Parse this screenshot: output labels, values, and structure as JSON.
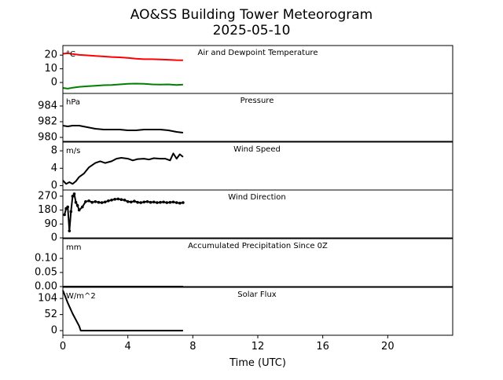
{
  "chart_data": {
    "type": "line",
    "title": "AO&SS Building Tower Meteorogram",
    "subtitle": "2025-05-10",
    "xlabel": "Time (UTC)",
    "xlim": [
      0,
      24
    ],
    "xticks": [
      0,
      4,
      8,
      12,
      16,
      20
    ],
    "panels": [
      {
        "title": "Air and Dewpoint Temperature",
        "unit": "°C",
        "ylim": [
          -8,
          27
        ],
        "yticks": [
          0,
          10,
          20
        ],
        "series": [
          {
            "color": "#ff0000",
            "x": [
              0,
              0.3,
              0.6,
              1,
              1.5,
              2,
              2.5,
              3,
              3.5,
              4,
              4.5,
              5,
              5.5,
              6,
              6.5,
              7,
              7.4
            ],
            "y": [
              21,
              21.4,
              20.8,
              20.2,
              19.8,
              19.4,
              19,
              18.6,
              18.4,
              18,
              17.4,
              17,
              17,
              16.8,
              16.6,
              16.3,
              16.2
            ]
          },
          {
            "color": "#008000",
            "x": [
              0,
              0.3,
              0.6,
              1,
              1.5,
              2,
              2.5,
              3,
              3.5,
              4,
              4.5,
              5,
              5.5,
              6,
              6.5,
              7,
              7.4
            ],
            "y": [
              -4,
              -4.5,
              -3.8,
              -3.2,
              -2.8,
              -2.4,
              -2,
              -1.8,
              -1.4,
              -1,
              -0.8,
              -1,
              -1.4,
              -1.6,
              -1.4,
              -1.8,
              -1.6
            ]
          }
        ]
      },
      {
        "title": "Pressure",
        "unit": "hPa",
        "ylim": [
          979.5,
          985.6
        ],
        "yticks": [
          980,
          982,
          984
        ],
        "series": [
          {
            "color": "#000000",
            "x": [
              0,
              0.3,
              0.6,
              1,
              1.5,
              2,
              2.5,
              3,
              3.5,
              4,
              4.5,
              5,
              5.5,
              6,
              6.5,
              7,
              7.4
            ],
            "y": [
              981.5,
              981.4,
              981.5,
              981.5,
              981.3,
              981.1,
              981,
              981,
              981,
              980.9,
              980.9,
              981,
              981,
              981,
              980.9,
              980.7,
              980.6
            ]
          }
        ]
      },
      {
        "title": "Wind Speed",
        "unit": "m/s",
        "ylim": [
          -1,
          10
        ],
        "yticks": [
          0,
          4,
          8
        ],
        "series": [
          {
            "color": "#000000",
            "x": [
              0,
              0.2,
              0.4,
              0.6,
              0.8,
              1,
              1.3,
              1.6,
              2,
              2.3,
              2.6,
              3,
              3.3,
              3.6,
              4,
              4.3,
              4.6,
              5,
              5.3,
              5.6,
              6,
              6.3,
              6.6,
              6.8,
              7,
              7.2,
              7.4
            ],
            "y": [
              1.2,
              0.4,
              0.8,
              0.4,
              1,
              2,
              2.8,
              4.2,
              5.2,
              5.6,
              5.2,
              5.6,
              6.2,
              6.4,
              6.2,
              5.8,
              6.1,
              6.2,
              6,
              6.3,
              6.2,
              6.2,
              5.8,
              7.4,
              6.2,
              7.2,
              6.6
            ]
          }
        ]
      },
      {
        "title": "Wind Direction",
        "unit": "",
        "ylim": [
          0,
          310
        ],
        "yticks": [
          0,
          90,
          180,
          270
        ],
        "series": [
          {
            "color": "#000000",
            "x": [
              0.1,
              0.2,
              0.3,
              0.4,
              0.5,
              0.6,
              0.7,
              0.8,
              0.9,
              1,
              1.2,
              1.4,
              1.6,
              1.8,
              2,
              2.2,
              2.4,
              2.6,
              2.8,
              3,
              3.2,
              3.4,
              3.6,
              3.8,
              4,
              4.2,
              4.4,
              4.6,
              4.8,
              5,
              5.2,
              5.4,
              5.6,
              5.8,
              6,
              6.2,
              6.4,
              6.6,
              6.8,
              7,
              7.2,
              7.4
            ],
            "y": [
              150,
              190,
              200,
              45,
              170,
              270,
              285,
              230,
              210,
              180,
              200,
              235,
              240,
              230,
              235,
              230,
              228,
              232,
              240,
              245,
              250,
              252,
              248,
              245,
              235,
              232,
              238,
              230,
              228,
              232,
              235,
              230,
              232,
              228,
              230,
              232,
              228,
              230,
              232,
              228,
              225,
              228
            ]
          }
        ]
      },
      {
        "title": "Accumulated Precipitation Since 0Z",
        "unit": "mm",
        "ylim": [
          0,
          0.17
        ],
        "yticks": [
          0.0,
          0.05,
          0.1
        ],
        "yticklabels": [
          "0.00",
          "0.05",
          "0.10"
        ],
        "series": [
          {
            "color": "#000000",
            "x": [
              0,
              7.4
            ],
            "y": [
              0,
              0
            ]
          }
        ]
      },
      {
        "title": "Solar Flux",
        "unit": "W/m^2",
        "ylim": [
          -15,
          140
        ],
        "yticks": [
          0,
          52,
          104
        ],
        "series": [
          {
            "color": "#000000",
            "x": [
              0,
              0.3,
              0.6,
              1,
              1.1,
              2,
              3,
              4,
              5,
              6,
              7,
              7.4
            ],
            "y": [
              130,
              90,
              55,
              15,
              0,
              0,
              0,
              0,
              0,
              0,
              0,
              0
            ]
          }
        ]
      }
    ]
  }
}
